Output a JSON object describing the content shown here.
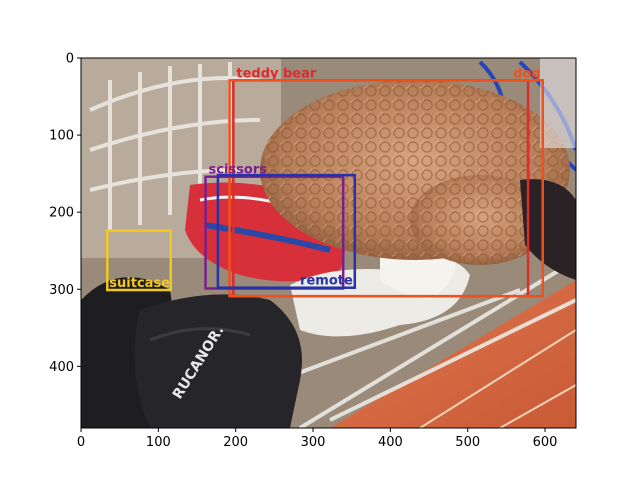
{
  "figure": {
    "image_extent": {
      "x_max": 640,
      "y_max": 480
    },
    "x_ticks": [
      0,
      100,
      200,
      300,
      400,
      500,
      600
    ],
    "y_ticks": [
      0,
      100,
      200,
      300,
      400
    ],
    "boxes": [
      {
        "label": "teddy bear",
        "color": "#dc2c2c",
        "x1": 197,
        "y1": 29,
        "x2": 578,
        "y2": 309,
        "label_anchor": "top-left"
      },
      {
        "label": "dog",
        "color": "#f0501e",
        "x1": 192,
        "y1": 29,
        "x2": 597,
        "y2": 309,
        "label_anchor": "top-right"
      },
      {
        "label": "scissors",
        "color": "#7a1f8a",
        "x1": 161,
        "y1": 154,
        "x2": 339,
        "y2": 299,
        "label_anchor": "top-left"
      },
      {
        "label": "remote",
        "color": "#2632a8",
        "x1": 177,
        "y1": 152,
        "x2": 354,
        "y2": 298,
        "label_anchor": "bottom-right"
      },
      {
        "label": "suitcase",
        "color": "#f2c81e",
        "x1": 34,
        "y1": 224,
        "x2": 116,
        "y2": 301,
        "label_anchor": "bottom-left"
      }
    ]
  }
}
